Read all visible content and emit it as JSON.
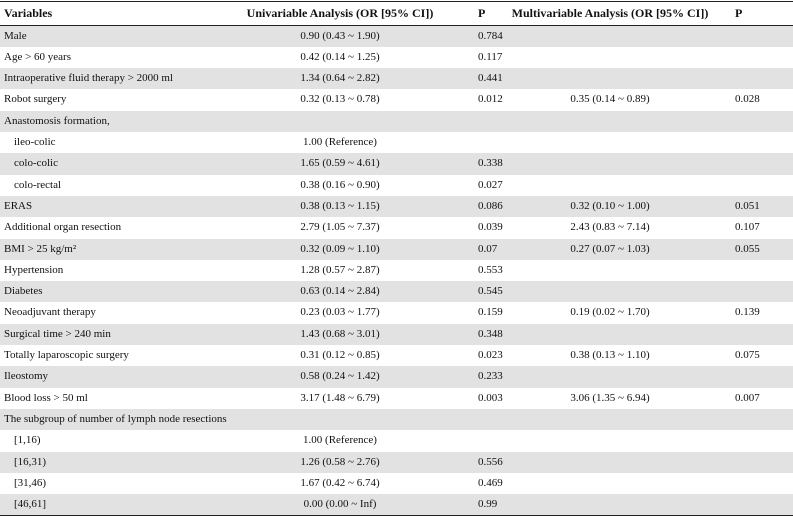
{
  "table": {
    "header": [
      "Variables",
      "Univariable Analysis (OR [95% CI])",
      "P",
      "Multivariable Analysis (OR [95% CI])",
      "P"
    ],
    "rows": [
      {
        "variable": "Male",
        "univariable": "0.90 (0.43 ~ 1.90)",
        "p": "0.784"
      },
      {
        "variable": "Age > 60 years",
        "univariable": "0.42 (0.14 ~ 1.25)",
        "p": "0.117"
      },
      {
        "variable": "Intraoperative fluid therapy > 2000 ml",
        "univariable": "1.34 (0.64 ~ 2.82)",
        "p": "0.441"
      },
      {
        "variable": "Robot surgery",
        "univariable": "0.32 (0.13 ~ 0.78)",
        "p": "0.012",
        "multivariable": "0.35 (0.14 ~ 0.89)",
        "p_multi": "0.028"
      },
      {
        "variable": "Anastomosis formation,"
      },
      {
        "variable": "ileo-colic",
        "indent": true,
        "univariable": "1.00 (Reference)"
      },
      {
        "variable": "colo-colic",
        "indent": true,
        "univariable": "1.65 (0.59 ~ 4.61)",
        "p": "0.338"
      },
      {
        "variable": "colo-rectal",
        "indent": true,
        "univariable": "0.38 (0.16 ~ 0.90)",
        "p": "0.027"
      },
      {
        "variable": "ERAS",
        "univariable": "0.38 (0.13 ~ 1.15)",
        "p": "0.086",
        "multivariable": "0.32 (0.10 ~ 1.00)",
        "p_multi": "0.051"
      },
      {
        "variable": "Additional organ resection",
        "univariable": "2.79 (1.05 ~ 7.37)",
        "p": "0.039",
        "multivariable": "2.43 (0.83 ~ 7.14)",
        "p_multi": "0.107"
      },
      {
        "variable": "BMI > 25 kg/m²",
        "univariable": "0.32 (0.09 ~ 1.10)",
        "p": "0.07",
        "multivariable": "0.27 (0.07 ~ 1.03)",
        "p_multi": "0.055"
      },
      {
        "variable": "Hypertension",
        "univariable": "1.28 (0.57 ~ 2.87)",
        "p": "0.553"
      },
      {
        "variable": "Diabetes",
        "univariable": "0.63 (0.14 ~ 2.84)",
        "p": "0.545"
      },
      {
        "variable": "Neoadjuvant therapy",
        "univariable": "0.23 (0.03 ~ 1.77)",
        "p": "0.159",
        "multivariable": "0.19 (0.02 ~ 1.70)",
        "p_multi": "0.139"
      },
      {
        "variable": "Surgical time > 240 min",
        "univariable": "1.43 (0.68 ~ 3.01)",
        "p": "0.348"
      },
      {
        "variable": "Totally laparoscopic surgery",
        "univariable": "0.31 (0.12 ~ 0.85)",
        "p": "0.023",
        "multivariable": "0.38 (0.13 ~ 1.10)",
        "p_multi": "0.075"
      },
      {
        "variable": "Ileostomy",
        "univariable": "0.58 (0.24 ~ 1.42)",
        "p": "0.233"
      },
      {
        "variable": "Blood loss > 50 ml",
        "univariable": "3.17 (1.48 ~ 6.79)",
        "p": "0.003",
        "multivariable": "3.06 (1.35 ~ 6.94)",
        "p_multi": "0.007"
      },
      {
        "variable": "The subgroup of number of lymph node resections"
      },
      {
        "variable": "[1,16)",
        "indent": true,
        "univariable": "1.00 (Reference)"
      },
      {
        "variable": "[16,31)",
        "indent": true,
        "univariable": "1.26 (0.58 ~ 2.76)",
        "p": "0.556"
      },
      {
        "variable": "[31,46)",
        "indent": true,
        "univariable": "1.67 (0.42 ~ 6.74)",
        "p": "0.469"
      },
      {
        "variable": "[46,61]",
        "indent": true,
        "univariable": "0.00 (0.00 ~ Inf)",
        "p": "0.99"
      }
    ]
  }
}
